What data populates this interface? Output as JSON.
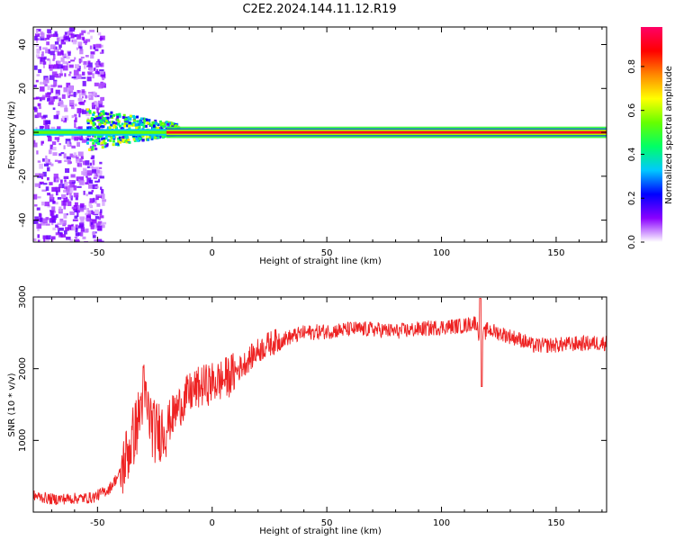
{
  "figure": {
    "title": "C2E2.2024.144.11.12.R19"
  },
  "chart_data": [
    {
      "type": "heatmap",
      "xlabel": "Height of straight line (km)",
      "ylabel": "Frequency (Hz)",
      "xlim": [
        -78,
        172
      ],
      "ylim": [
        -50,
        48
      ],
      "xticks": [
        -50,
        0,
        50,
        100,
        150
      ],
      "yticks": [
        -40,
        -20,
        0,
        20,
        40
      ],
      "grid": false,
      "description_points": [
        {
          "x": -78,
          "y": 0,
          "amplitude": 0.55
        },
        {
          "x": -60,
          "y": 0,
          "amplitude": 0.5
        },
        {
          "x": -45,
          "y": 3,
          "amplitude": 0.6
        },
        {
          "x": -35,
          "y": 2,
          "amplitude": 0.65
        },
        {
          "x": -25,
          "y": 1,
          "amplitude": 0.75
        },
        {
          "x": -15,
          "y": 0,
          "amplitude": 0.95
        },
        {
          "x": 0,
          "y": 0,
          "amplitude": 1.0
        },
        {
          "x": 50,
          "y": 0,
          "amplitude": 1.0
        },
        {
          "x": 100,
          "y": 0,
          "amplitude": 1.0
        },
        {
          "x": 150,
          "y": 0,
          "amplitude": 0.95
        },
        {
          "x": 172,
          "y": 0,
          "amplitude": 0.9
        }
      ],
      "colorbar": {
        "label": "Normalized spectral amplitude",
        "ticks": [
          "0.0",
          "0.2",
          "0.4",
          "0.6",
          "0.8"
        ],
        "colors": [
          "#ffffff",
          "#8a00ff",
          "#0000ff",
          "#00c8ff",
          "#00ff66",
          "#66ff00",
          "#ffff00",
          "#ff8800",
          "#ff0000",
          "#ff0066"
        ]
      }
    },
    {
      "type": "line",
      "xlabel": "Height of straight line (km)",
      "ylabel": "SNR (10 * v/v)",
      "xlim": [
        -78,
        172
      ],
      "ylim": [
        0,
        3000
      ],
      "xticks": [
        -50,
        0,
        50,
        100,
        150
      ],
      "yticks": [
        1000,
        2000,
        3000
      ],
      "grid": false,
      "series": [
        {
          "color": "#ee2222",
          "x": [
            -78,
            -70,
            -60,
            -52,
            -45,
            -40,
            -36,
            -32,
            -30,
            -28,
            -25,
            -20,
            -15,
            -10,
            -5,
            0,
            5,
            10,
            15,
            20,
            25,
            30,
            35,
            40,
            50,
            60,
            70,
            80,
            90,
            100,
            110,
            115,
            117,
            120,
            125,
            130,
            135,
            140,
            150,
            160,
            172
          ],
          "y": [
            230,
            180,
            190,
            200,
            320,
            550,
            900,
            1300,
            1700,
            1400,
            1100,
            1200,
            1450,
            1650,
            1750,
            1800,
            1850,
            1950,
            2100,
            2250,
            2350,
            2400,
            2450,
            2500,
            2520,
            2550,
            2550,
            2520,
            2550,
            2580,
            2600,
            2650,
            2400,
            2550,
            2500,
            2450,
            2400,
            2320,
            2330,
            2350,
            2360
          ]
        }
      ]
    }
  ]
}
